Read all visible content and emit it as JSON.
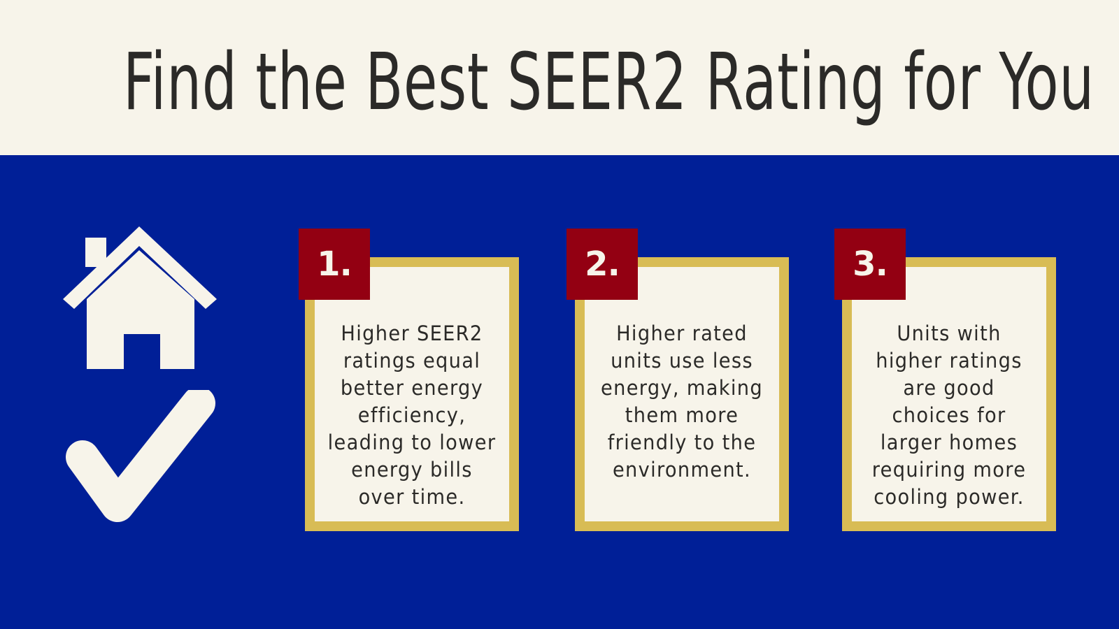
{
  "page": {
    "title": "Find the Best SEER2 Rating for You"
  },
  "icons": {
    "house": "house-icon",
    "check": "checkmark-icon"
  },
  "cards": [
    {
      "number": "1.",
      "text": "Higher SEER2 ratings equal better energy efficiency, leading to lower energy bills over time."
    },
    {
      "number": "2.",
      "text": "Higher rated units use less energy, making them more friendly to the environment."
    },
    {
      "number": "3.",
      "text": "Units with higher ratings are good choices for larger homes requiring more cooling power."
    }
  ],
  "colors": {
    "background_blue": "#001f97",
    "header_cream": "#f7f4ea",
    "card_border_gold": "#d8bc55",
    "badge_red": "#930012",
    "text_dark": "#2b2a28"
  }
}
